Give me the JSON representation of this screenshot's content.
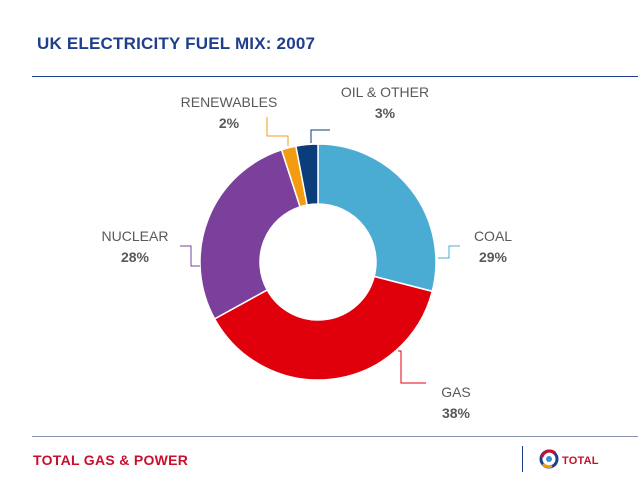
{
  "header": {
    "title": "UK ELECTRICITY FUEL MIX: 2007"
  },
  "footer": {
    "brand_left": "TOTAL GAS & POWER",
    "brand_right": "TOTAL"
  },
  "chart_data": {
    "type": "pie",
    "donut": true,
    "title": "UK ELECTRICITY FUEL MIX: 2007",
    "slices": [
      {
        "label": "COAL",
        "value": 29,
        "display": "29%",
        "color": "#4bacd3"
      },
      {
        "label": "GAS",
        "value": 38,
        "display": "38%",
        "color": "#e0000b"
      },
      {
        "label": "NUCLEAR",
        "value": 28,
        "display": "28%",
        "color": "#7b3f9c"
      },
      {
        "label": "RENEWABLES",
        "value": 2,
        "display": "2%",
        "color": "#f39c12"
      },
      {
        "label": "OIL & OTHER",
        "value": 3,
        "display": "3%",
        "color": "#0b3d7a"
      }
    ]
  }
}
